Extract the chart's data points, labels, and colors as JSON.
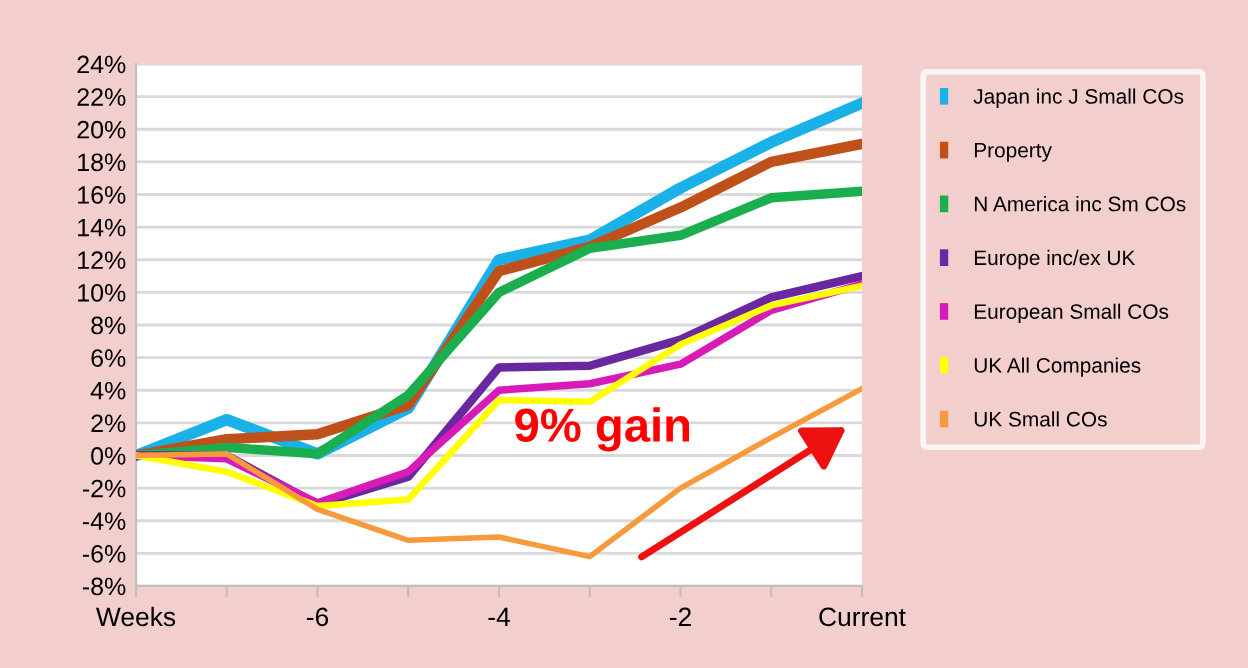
{
  "chart_data": {
    "type": "line",
    "categories": [
      "Weeks",
      null,
      "-6",
      null,
      "-4",
      null,
      "-2",
      null,
      "Current"
    ],
    "series": [
      {
        "name": "Japan inc J Small COs",
        "color": "#1ab0e8",
        "values": [
          0,
          2.2,
          0.1,
          2.9,
          12,
          13.2,
          16.4,
          19.2,
          21.6
        ]
      },
      {
        "name": "Property",
        "color": "#c0501a",
        "values": [
          0,
          1.0,
          1.3,
          3.1,
          11.3,
          12.8,
          15.2,
          18,
          19.1
        ]
      },
      {
        "name": "N America inc Sm COs",
        "color": "#1aae4f",
        "values": [
          0,
          0.5,
          0.1,
          3.7,
          10,
          12.7,
          13.5,
          15.8,
          16.2
        ]
      },
      {
        "name": "Europe inc/ex UK",
        "color": "#6a28a0",
        "values": [
          0,
          0,
          -3,
          -1.3,
          5.4,
          5.5,
          7.1,
          9.7,
          11
        ]
      },
      {
        "name": "European Small COs",
        "color": "#d81ab8",
        "values": [
          0,
          -0.2,
          -2.9,
          -1,
          4,
          4.4,
          5.6,
          8.9,
          10.5
        ]
      },
      {
        "name": "UK All Companies",
        "color": "#ffff00",
        "values": [
          0,
          -1,
          -3.1,
          -2.7,
          3.4,
          3.3,
          6.8,
          9.2,
          10.4
        ]
      },
      {
        "name": "UK Small COs",
        "color": "#f79a3c",
        "values": [
          0,
          0.1,
          -3.3,
          -5.2,
          -5,
          -6.2,
          -2,
          1.1,
          4.1
        ]
      }
    ],
    "ylim": [
      -8,
      24
    ],
    "yticks": [
      {
        "value": -8,
        "label": "-8%"
      },
      {
        "value": -6,
        "label": "-6%"
      },
      {
        "value": -4,
        "label": "-4%"
      },
      {
        "value": -2,
        "label": "-2%"
      },
      {
        "value": 0,
        "label": "0%"
      },
      {
        "value": 2,
        "label": "2%"
      },
      {
        "value": 4,
        "label": "4%"
      },
      {
        "value": 6,
        "label": "6%"
      },
      {
        "value": 8,
        "label": "8%"
      },
      {
        "value": 10,
        "label": "10%"
      },
      {
        "value": 12,
        "label": "12%"
      },
      {
        "value": 14,
        "label": "14%"
      },
      {
        "value": 16,
        "label": "16%"
      },
      {
        "value": 18,
        "label": "18%"
      },
      {
        "value": 20,
        "label": "20%"
      },
      {
        "value": 22,
        "label": "22%"
      },
      {
        "value": 24,
        "label": "24%"
      }
    ],
    "grid": "y",
    "legend": "right",
    "marker": "none",
    "line_style": "solid",
    "annotations": [
      "9% gain"
    ]
  }
}
